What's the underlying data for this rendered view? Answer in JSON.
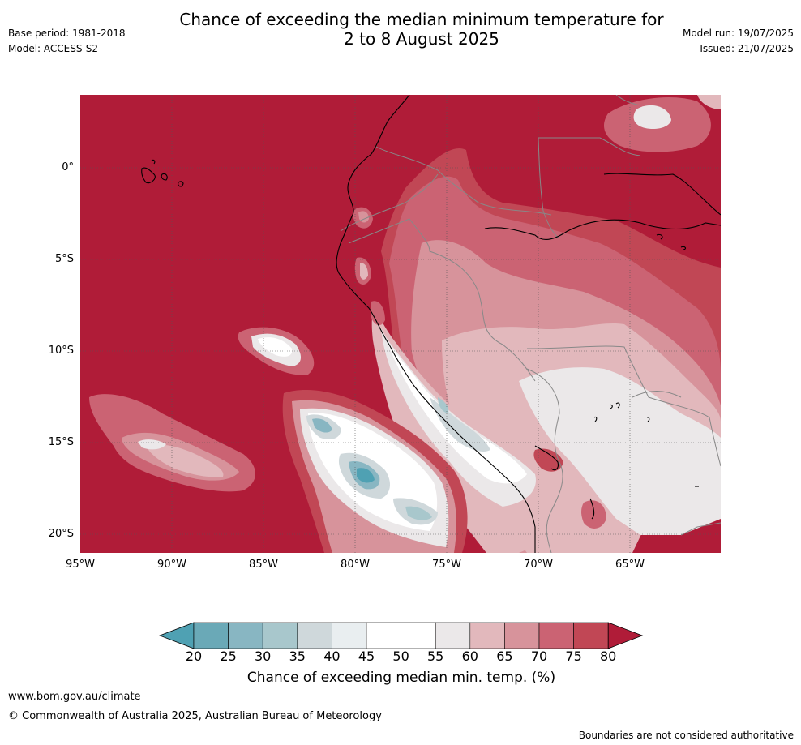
{
  "header": {
    "title_line1": "Chance of exceeding the median minimum temperature for",
    "title_line2": "2 to 8 August 2025",
    "base_period": "Base period: 1981-2018",
    "model": "Model: ACCESS-S2",
    "model_run": "Model run: 19/07/2025",
    "issued": "Issued: 21/07/2025"
  },
  "map": {
    "latitude_labels": [
      "0°",
      "5°S",
      "10°S",
      "15°S",
      "20°S"
    ],
    "longitude_labels": [
      "95°W",
      "90°W",
      "85°W",
      "80°W",
      "75°W",
      "70°W",
      "65°W"
    ],
    "grid": "dotted",
    "colors": {
      "p80plus": "#b01c38",
      "p75": "#c14755",
      "p70": "#cb6373",
      "p65": "#d7939b",
      "p60": "#e2b8bc",
      "p55": "#ebe8e9",
      "p50": "#ffffff",
      "p45": "#e9eef0",
      "p40": "#cfd8db",
      "p35": "#a8c7cc",
      "p30": "#88b6c2",
      "p25": "#6aa9b7",
      "p20": "#4fa1b3"
    }
  },
  "colorbar": {
    "ticks": [
      "20",
      "25",
      "30",
      "35",
      "40",
      "45",
      "50",
      "55",
      "60",
      "65",
      "70",
      "75",
      "80"
    ],
    "colors": [
      "#6aa9b7",
      "#88b6c2",
      "#a8c7cc",
      "#cfd8db",
      "#e9eef0",
      "#ffffff",
      "#ffffff",
      "#ebe8e9",
      "#e2b8bc",
      "#d7939b",
      "#cb6373",
      "#c14755"
    ],
    "under_color": "#4fa1b3",
    "over_color": "#b01c38",
    "label": "Chance of exceeding median min. temp. (%)"
  },
  "footer": {
    "url": "www.bom.gov.au/climate",
    "copyright": "© Commonwealth of Australia 2025, Australian Bureau of Meteorology",
    "disclaimer": "Boundaries are not considered authoritative"
  }
}
